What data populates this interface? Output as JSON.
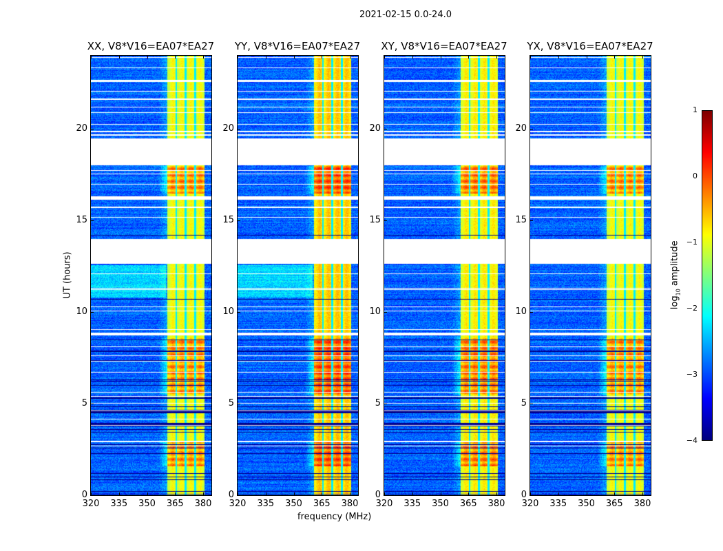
{
  "chart_data": {
    "type": "heatmap",
    "title": "2021-02-15 0.0-24.0",
    "xlabel": "frequency (MHz)",
    "ylabel": "UT (hours)",
    "xlim": [
      320,
      384.4
    ],
    "ylim": [
      0,
      24
    ],
    "xticks": [
      "320",
      "335",
      "350",
      "365",
      "380"
    ],
    "xtick_values": [
      320,
      335,
      350,
      365,
      380
    ],
    "yticks": [
      "0",
      "5",
      "10",
      "15",
      "20"
    ],
    "ytick_values": [
      0,
      5,
      10,
      15,
      20
    ],
    "panels": [
      {
        "title": "XX, V8*V16=EA07*EA27",
        "band_level": -1.0
      },
      {
        "title": "YY, V8*V16=EA07*EA27",
        "band_level": -0.7
      },
      {
        "title": "XY, V8*V16=EA07*EA27",
        "band_level": -0.9
      },
      {
        "title": "YX, V8*V16=EA07*EA27",
        "band_level": -1.0
      }
    ],
    "background_level": -2.9,
    "rfi_band_mhz": [
      360.7,
      380.4
    ],
    "rfi_notches_mhz": [
      365.5,
      370.5,
      375.6
    ],
    "flagged_hours": [
      [
        18.05,
        19.5
      ],
      [
        12.66,
        14.0
      ],
      [
        8.75,
        8.9
      ],
      [
        16.2,
        16.3
      ],
      [
        2.9,
        3.0
      ],
      [
        22.6,
        22.7
      ],
      [
        21.6,
        21.7
      ]
    ],
    "strong_hours": [
      [
        16.5,
        18.0
      ],
      [
        5.5,
        8.6
      ],
      [
        1.6,
        2.9
      ]
    ],
    "dark_rows_hours": [
      [
        10.7,
        10.75
      ],
      [
        4.5,
        4.7
      ],
      [
        3.8,
        3.9
      ],
      [
        7.6,
        7.65
      ],
      [
        14.2,
        14.25
      ]
    ],
    "colorbar": {
      "label": "log10 amplitude",
      "label_main": "log",
      "label_sub": "10",
      "label_rest": " amplitude",
      "range": [
        -4,
        1
      ],
      "ticks": [
        "1",
        "0",
        "−1",
        "−2",
        "−3",
        "−4"
      ],
      "tick_values": [
        1,
        0,
        -1,
        -2,
        -3,
        -4
      ],
      "colormap": "jet"
    }
  }
}
